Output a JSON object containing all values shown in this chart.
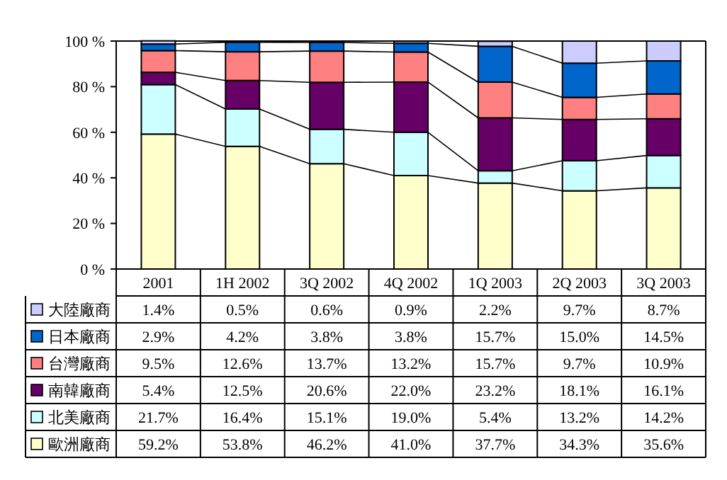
{
  "chart_data": {
    "type": "bar",
    "stacked": true,
    "categories": [
      "2001",
      "1H 2002",
      "3Q 2002",
      "4Q 2002",
      "1Q 2003",
      "2Q 2003",
      "3Q 2003"
    ],
    "ylim": [
      0,
      100
    ],
    "yticks": [
      {
        "value": 0,
        "label": "0 %"
      },
      {
        "value": 20,
        "label": "20 %"
      },
      {
        "value": 40,
        "label": "40 %"
      },
      {
        "value": 60,
        "label": "60 %"
      },
      {
        "value": 80,
        "label": "80 %"
      },
      {
        "value": 100,
        "label": "100 %"
      }
    ],
    "legend": "bottom left",
    "grid": false,
    "series": [
      {
        "name": "歐洲廠商",
        "color": "#ffffcc",
        "values": [
          59.2,
          53.8,
          46.2,
          41.0,
          37.7,
          34.3,
          35.6
        ],
        "value_labels": [
          "59.2%",
          "53.8%",
          "46.2%",
          "41.0%",
          "37.7%",
          "34.3%",
          "35.6%"
        ]
      },
      {
        "name": "北美廠商",
        "color": "#ccffff",
        "values": [
          21.7,
          16.4,
          15.1,
          19.0,
          5.4,
          13.2,
          14.2
        ],
        "value_labels": [
          "21.7%",
          "16.4%",
          "15.1%",
          "19.0%",
          "5.4%",
          "13.2%",
          "14.2%"
        ]
      },
      {
        "name": "南韓廠商",
        "color": "#660066",
        "values": [
          5.4,
          12.5,
          20.6,
          22.0,
          23.2,
          18.1,
          16.1
        ],
        "value_labels": [
          "5.4%",
          "12.5%",
          "20.6%",
          "22.0%",
          "23.2%",
          "18.1%",
          "16.1%"
        ]
      },
      {
        "name": "台灣廠商",
        "color": "#ff8080",
        "values": [
          9.5,
          12.6,
          13.7,
          13.2,
          15.7,
          9.7,
          10.9
        ],
        "value_labels": [
          "9.5%",
          "12.6%",
          "13.7%",
          "13.2%",
          "15.7%",
          "9.7%",
          "10.9%"
        ]
      },
      {
        "name": "日本廠商",
        "color": "#0066cc",
        "values": [
          2.9,
          4.2,
          3.8,
          3.8,
          15.7,
          15.0,
          14.5
        ],
        "value_labels": [
          "2.9%",
          "4.2%",
          "3.8%",
          "3.8%",
          "15.7%",
          "15.0%",
          "14.5%"
        ]
      },
      {
        "name": "大陸廠商",
        "color": "#ccccff",
        "values": [
          1.4,
          0.5,
          0.6,
          0.9,
          2.2,
          9.7,
          8.7
        ],
        "value_labels": [
          "1.4%",
          "0.5%",
          "0.6%",
          "0.9%",
          "2.2%",
          "9.7%",
          "8.7%"
        ]
      }
    ]
  }
}
